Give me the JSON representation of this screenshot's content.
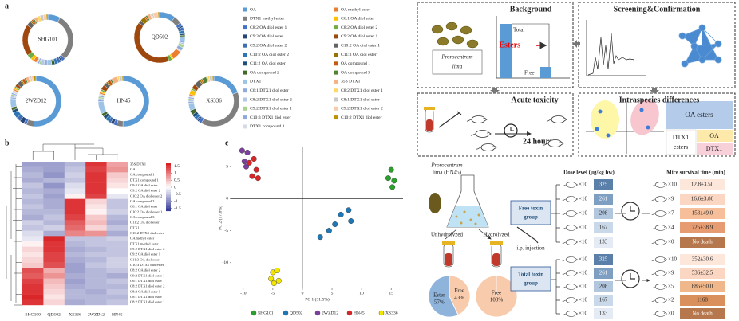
{
  "panel_a": {
    "label": "a",
    "components": [
      {
        "name": "OA",
        "color": "#5b9bd5"
      },
      {
        "name": "DTX1 methyl ester",
        "color": "#7f7f7f"
      },
      {
        "name": "C8:2 OA diol ester 1",
        "color": "#4472c4"
      },
      {
        "name": "C9:3 OA diol ester",
        "color": "#264478"
      },
      {
        "name": "C9:2 OA diol ester 2",
        "color": "#3f6fb0"
      },
      {
        "name": "C10:2 OA diol ester 2",
        "color": "#2e75b6"
      },
      {
        "name": "C11:2 OA diol ester",
        "color": "#1f4e79"
      },
      {
        "name": "OA compound 2",
        "color": "#43682b"
      },
      {
        "name": "DTX1",
        "color": "#9dc3e6"
      },
      {
        "name": "C6:1 DTX1 diol ester",
        "color": "#8faadc"
      },
      {
        "name": "C8:2 DTX1 diol ester 2",
        "color": "#b4c7e7"
      },
      {
        "name": "C9:2 DTX1 diol ester 1",
        "color": "#a9d18e"
      },
      {
        "name": "C10:3 DTX1 diol ester",
        "color": "#8ea9db"
      },
      {
        "name": "DTX1 compound 1",
        "color": "#d6dce5"
      },
      {
        "name": "OA methyl ester",
        "color": "#ed7d31"
      },
      {
        "name": "C6:1 OA diol ester",
        "color": "#ffc000"
      },
      {
        "name": "C8:2 OA diol ester 2",
        "color": "#70ad47"
      },
      {
        "name": "C9:2 OA diol ester 1",
        "color": "#9e480e"
      },
      {
        "name": "C10:2 OA diol ester 1",
        "color": "#636363"
      },
      {
        "name": "C11:3 OA diol ester",
        "color": "#997300"
      },
      {
        "name": "OA compound 1",
        "color": "#c55a11"
      },
      {
        "name": "OA compound 3",
        "color": "#548235"
      },
      {
        "name": "35S DTX1",
        "color": "#f4b183"
      },
      {
        "name": "C8:2 DTX1 diol ester 1",
        "color": "#ffd966"
      },
      {
        "name": "C8:1 DTX1 diol ester",
        "color": "#c9c9c9"
      },
      {
        "name": "C9:2 DTX1 diol ester 2",
        "color": "#f8cbad"
      },
      {
        "name": "C10:2 DTX1 diol ester",
        "color": "#bf9000"
      }
    ],
    "samples": [
      {
        "name": "SHG101",
        "values": [
          8,
          30,
          2,
          1,
          2,
          2,
          1,
          1,
          3,
          2,
          2,
          1,
          1,
          1,
          2,
          2,
          3,
          20,
          3,
          1,
          1,
          1,
          2,
          2,
          2,
          2,
          1
        ]
      },
      {
        "name": "QD502",
        "values": [
          10,
          5,
          2,
          1,
          2,
          2,
          1,
          1,
          3,
          1,
          1,
          2,
          2,
          1,
          6,
          1,
          2,
          40,
          2,
          3,
          1,
          1,
          2,
          1,
          1,
          3,
          1
        ]
      },
      {
        "name": "2WZD12",
        "values": [
          55,
          5,
          2,
          3,
          3,
          4,
          2,
          2,
          6,
          1,
          1,
          1,
          1,
          2,
          1,
          1,
          1,
          2,
          3,
          1,
          2,
          1,
          2,
          1,
          1,
          1,
          2
        ]
      },
      {
        "name": "HN45",
        "values": [
          50,
          4,
          2,
          2,
          2,
          2,
          2,
          2,
          8,
          1,
          1,
          1,
          1,
          1,
          1,
          1,
          1,
          3,
          2,
          1,
          2,
          1,
          4,
          1,
          1,
          1,
          1
        ]
      },
      {
        "name": "XS336",
        "values": [
          20,
          40,
          2,
          1,
          1,
          2,
          2,
          3,
          5,
          1,
          1,
          1,
          1,
          1,
          1,
          3,
          1,
          3,
          4,
          1,
          1,
          3,
          1,
          1,
          1,
          1,
          1
        ]
      }
    ]
  },
  "panel_b": {
    "label": "b",
    "columns": [
      "SHG100",
      "QD502",
      "XS336",
      "2WZD12",
      "HN45"
    ],
    "rows": [
      "35S DTX1",
      "OA",
      "OA compound 1",
      "DTX1 compound 1",
      "C9:3 OA diol ester",
      "C9:2 OA diol ester 2",
      "C10:2 OA diol ester 2",
      "OA compound 2",
      "C6:1 OA diol ester",
      "C10:2 OA diol ester 1",
      "OA compound 3",
      "C11:2 OA diol ester",
      "DTX1",
      "C10:2 DTX1 diol ester",
      "OA methyl ester",
      "DTX1 methyl ester",
      "C9:2 DTX1 diol ester 2",
      "C9:2 OA diol ester 1",
      "C11:3 OA diol ester",
      "C10:3 DTX1 diol ester",
      "C8:2 OA diol ester 2",
      "C9:2 DTX1 diol ester 1",
      "C6:1 DTX1 diol ester",
      "C8:2 DTX1 diol ester 2",
      "C8:2 OA diol ester 1",
      "C8:1 DTX1 diol ester",
      "C8:2 DTX1 diol ester 1"
    ],
    "values": [
      [
        -0.8,
        -0.8,
        -0.6,
        1.5,
        0.7
      ],
      [
        -0.7,
        -0.8,
        -0.5,
        1.4,
        0.8
      ],
      [
        -0.6,
        -0.9,
        -0.4,
        1.5,
        0.4
      ],
      [
        -0.7,
        -0.6,
        -0.5,
        1.5,
        0.3
      ],
      [
        -0.5,
        -0.9,
        -0.3,
        1.5,
        0.2
      ],
      [
        -0.6,
        -0.7,
        -0.2,
        1.5,
        0
      ],
      [
        -0.5,
        -0.8,
        0.1,
        1.4,
        -0.2
      ],
      [
        -0.6,
        -0.7,
        1.5,
        0.3,
        -0.5
      ],
      [
        -0.5,
        -0.7,
        1.5,
        0.2,
        -0.5
      ],
      [
        -0.6,
        -0.6,
        1.5,
        0.1,
        -0.4
      ],
      [
        -0.7,
        -0.5,
        1.4,
        0.4,
        -0.6
      ],
      [
        -0.4,
        -0.6,
        1.2,
        0.5,
        -0.7
      ],
      [
        -0.5,
        -0.4,
        1.1,
        0.3,
        -0.5
      ],
      [
        -0.3,
        -0.7,
        0.9,
        0.8,
        -0.7
      ],
      [
        -0.2,
        1.6,
        -0.5,
        -0.5,
        -0.4
      ],
      [
        0.1,
        1.5,
        -0.6,
        -0.5,
        -0.5
      ],
      [
        0.3,
        1.5,
        -0.7,
        -0.6,
        -0.5
      ],
      [
        0.2,
        1.4,
        -0.6,
        -0.5,
        -0.5
      ],
      [
        0.3,
        1.4,
        -0.7,
        -0.6,
        -0.4
      ],
      [
        0.4,
        1.3,
        -0.8,
        -0.5,
        -0.4
      ],
      [
        1.3,
        0.6,
        -0.8,
        -0.6,
        -0.5
      ],
      [
        1.2,
        0.8,
        -0.7,
        -0.6,
        -0.7
      ],
      [
        1.4,
        0.5,
        -0.8,
        -0.6,
        -0.5
      ],
      [
        1.5,
        0.4,
        -0.7,
        -0.6,
        -0.6
      ],
      [
        1.5,
        0.3,
        -0.6,
        -0.7,
        -0.5
      ],
      [
        1.6,
        0.2,
        -0.6,
        -0.6,
        -0.6
      ],
      [
        1.5,
        0.3,
        -0.7,
        -0.6,
        -0.5
      ]
    ],
    "colorbar_lim": [
      -1.7,
      1.7
    ],
    "colorbar_ticks": [
      1.5,
      1,
      0.5,
      0,
      -0.5,
      -1,
      -1.5
    ]
  },
  "panel_c": {
    "label": "c",
    "type": "scatter",
    "xlabel": "PC 1 (31.5%)",
    "ylabel": "PC 2 (17.6%)",
    "xlim": [
      -12,
      17
    ],
    "ylim": [
      -14,
      8
    ],
    "xticks": [
      -10,
      -5,
      0,
      5,
      10,
      15
    ],
    "yticks": [
      5,
      0,
      -5,
      -10
    ],
    "series": [
      {
        "name": "SHG101",
        "color": "#2ca02c",
        "x": [
          15,
          14.5,
          15.5,
          15.2
        ],
        "y": [
          4.5,
          3.2,
          2.8,
          1.8
        ]
      },
      {
        "name": "QD502",
        "color": "#1f77b4",
        "x": [
          7.8,
          6.5,
          8.2,
          5.5,
          4.5,
          3
        ],
        "y": [
          -1.8,
          -2.5,
          -3.5,
          -4,
          -5,
          -6
        ]
      },
      {
        "name": "2WZD12",
        "color": "#7b3f9e",
        "x": [
          -10.2,
          -9.3,
          -9.8,
          -9.5
        ],
        "y": [
          7.5,
          7.2,
          5.8,
          5
        ]
      },
      {
        "name": "HN45",
        "color": "#d62728",
        "x": [
          -8.2,
          -9,
          -7.8,
          -8.5,
          -7.5
        ],
        "y": [
          6.2,
          5.6,
          4.5,
          3.5,
          3.2
        ]
      },
      {
        "name": "XS336",
        "color": "#f2e600",
        "x": [
          -5,
          -4.3,
          -5.3,
          -4.8,
          -4
        ],
        "y": [
          -11.5,
          -11.2,
          -12.5,
          -13.2,
          -12.8
        ]
      }
    ]
  },
  "abstract": {
    "background": "Background",
    "total": "Total",
    "esters": "Esters",
    "free": "Free",
    "species": [
      "Prorocentrum",
      "lima"
    ],
    "screening": "Screening&Confirmation",
    "acute": "Acute toxicity",
    "hours": "24 hours",
    "intraspecies": "Intraspecies differences",
    "oa_esters": "OA esters",
    "dtx1_esters": [
      "DTX1",
      "esters"
    ],
    "oa": "OA",
    "dtx1": "DTX1"
  },
  "experiment": {
    "strain": [
      "Prorocentrum",
      "lima (HN45)"
    ],
    "unhydrolyzed": "Unhydrolyzed",
    "hydrolyzed": "Hydrolyzed",
    "injection": "i.p. injection",
    "pies": [
      {
        "names": [
          "Free",
          "Ester"
        ],
        "values": [
          43,
          57
        ],
        "value_labels": [
          "43%",
          "57%"
        ],
        "colors": [
          "#f8cbad",
          "#8fb4dc"
        ]
      },
      {
        "names": [
          "Free"
        ],
        "values": [
          100
        ],
        "value_labels": [
          "100%"
        ],
        "colors": [
          "#f8cbad"
        ]
      }
    ],
    "dose_title": "Dose level (μg/kg bw)",
    "survival_title": "Mice survival time (min)",
    "groups": [
      {
        "name": [
          "Free toxin",
          "group"
        ],
        "counts": [
          "×10",
          "×10",
          "×10",
          "×10",
          "×10"
        ],
        "doses": [
          325,
          261,
          208,
          167,
          133
        ],
        "survival_counts": [
          "×10",
          "×9",
          "×7",
          "×4",
          "×0"
        ],
        "survival": [
          "12.8±3.50",
          "16.6±3.80",
          "153±49.0",
          "725±38.9",
          "No death"
        ]
      },
      {
        "name": [
          "Total toxin",
          "group"
        ],
        "counts": [
          "×10",
          "×10",
          "×10",
          "×10",
          "×10"
        ],
        "doses": [
          325,
          261,
          208,
          167,
          133
        ],
        "survival_counts": [
          "×10",
          "×9",
          "×5",
          "×2",
          "×0"
        ],
        "survival": [
          "352±30.6",
          "536±32.5",
          "886±50.0",
          "1168",
          "No death"
        ]
      }
    ]
  }
}
